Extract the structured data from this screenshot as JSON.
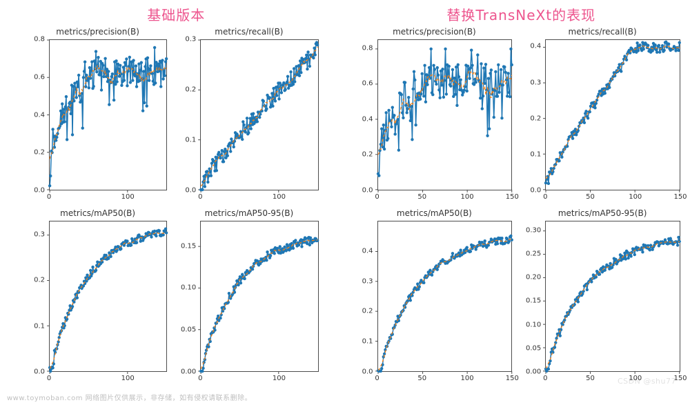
{
  "footer_text": "www.toymoban.com 网络图片仅供展示，非存储，如有侵权请联系删除。",
  "watermark": "CSDN @shu77",
  "style": {
    "raw_line_color": "#1f77b4",
    "raw_marker_color": "#1f77b4",
    "raw_marker_fill": "#1f77b4",
    "raw_line_width": 1.5,
    "raw_marker_radius": 2.2,
    "smooth_line_color": "#ff7f0e",
    "smooth_dash": "4,3",
    "smooth_line_width": 1.2,
    "axis_color": "#4c4c4c",
    "tick_font_size": 10,
    "title_font_size": 12,
    "header_font_size": 20,
    "header_color": "#ed558e",
    "background": "#ffffff",
    "n_points": 150
  },
  "groups": [
    {
      "key": "baseline",
      "title": "基础版本",
      "charts": [
        {
          "key": "precision",
          "title": "metrics/precision(B)",
          "xlim": [
            0,
            150
          ],
          "ylim": [
            0.0,
            0.8
          ],
          "xticks": [
            0,
            100
          ],
          "yticks": [
            0.0,
            0.2,
            0.4,
            0.6,
            0.8
          ],
          "ytick_fmt": "0.1",
          "curve": {
            "shape": "prec-noisy",
            "start": 0.0,
            "plateau": 0.63,
            "plateau_at": 60,
            "peak": 0.76,
            "noise": 0.08
          }
        },
        {
          "key": "recall",
          "title": "metrics/recall(B)",
          "xlim": [
            0,
            150
          ],
          "ylim": [
            0.0,
            0.3
          ],
          "xticks": [
            0,
            100
          ],
          "yticks": [
            0.0,
            0.1,
            0.2,
            0.3
          ],
          "ytick_fmt": "0.1",
          "curve": {
            "shape": "ramp-noisy",
            "start": 0.01,
            "end": 0.28,
            "noise": 0.018
          }
        },
        {
          "key": "map50",
          "title": "metrics/mAP50(B)",
          "xlim": [
            0,
            150
          ],
          "ylim": [
            0.0,
            0.33
          ],
          "xticks": [
            0,
            100
          ],
          "yticks": [
            0.0,
            0.1,
            0.2,
            0.3
          ],
          "ytick_fmt": "0.1",
          "curve": {
            "shape": "smooth-sat",
            "start": 0.0,
            "end": 0.32,
            "noise": 0.008
          }
        },
        {
          "key": "map5095",
          "title": "metrics/mAP50-95(B)",
          "xlim": [
            0,
            150
          ],
          "ylim": [
            0.0,
            0.18
          ],
          "xticks": [
            0,
            100
          ],
          "yticks": [
            0.0,
            0.05,
            0.1,
            0.15
          ],
          "ytick_fmt": "0.2",
          "curve": {
            "shape": "smooth-sat",
            "start": 0.0,
            "end": 0.165,
            "noise": 0.005
          }
        }
      ]
    },
    {
      "key": "transnext",
      "title": "替换TransNeXt的表现",
      "charts": [
        {
          "key": "precision",
          "title": "metrics/precision(B)",
          "xlim": [
            0,
            150
          ],
          "ylim": [
            0.0,
            0.85
          ],
          "xticks": [
            0,
            50,
            100,
            150
          ],
          "yticks": [
            0.0,
            0.2,
            0.4,
            0.6,
            0.8
          ],
          "ytick_fmt": "0.1",
          "curve": {
            "shape": "prec-noisy",
            "start": 0.0,
            "plateau": 0.62,
            "plateau_at": 50,
            "peak": 0.8,
            "noise": 0.1
          }
        },
        {
          "key": "recall",
          "title": "metrics/recall(B)",
          "xlim": [
            0,
            150
          ],
          "ylim": [
            0.0,
            0.42
          ],
          "xticks": [
            0,
            50,
            100,
            150
          ],
          "yticks": [
            0.0,
            0.1,
            0.2,
            0.3,
            0.4
          ],
          "ytick_fmt": "0.1",
          "curve": {
            "shape": "ramp-plateau",
            "start": 0.01,
            "plateau": 0.4,
            "plateau_at": 100,
            "noise": 0.015
          }
        },
        {
          "key": "map50",
          "title": "metrics/mAP50(B)",
          "xlim": [
            0,
            150
          ],
          "ylim": [
            0.0,
            0.5
          ],
          "xticks": [
            0,
            50,
            100,
            150
          ],
          "yticks": [
            0.0,
            0.1,
            0.2,
            0.3,
            0.4
          ],
          "ytick_fmt": "0.1",
          "curve": {
            "shape": "smooth-sat",
            "start": 0.0,
            "end": 0.46,
            "noise": 0.012
          }
        },
        {
          "key": "map5095",
          "title": "metrics/mAP50-95(B)",
          "xlim": [
            0,
            150
          ],
          "ylim": [
            0.0,
            0.32
          ],
          "xticks": [
            0,
            50,
            100,
            150
          ],
          "yticks": [
            0.0,
            0.05,
            0.1,
            0.15,
            0.2,
            0.25,
            0.3
          ],
          "ytick_fmt": "0.2",
          "curve": {
            "shape": "smooth-sat",
            "start": 0.0,
            "end": 0.29,
            "noise": 0.009
          }
        }
      ]
    }
  ]
}
